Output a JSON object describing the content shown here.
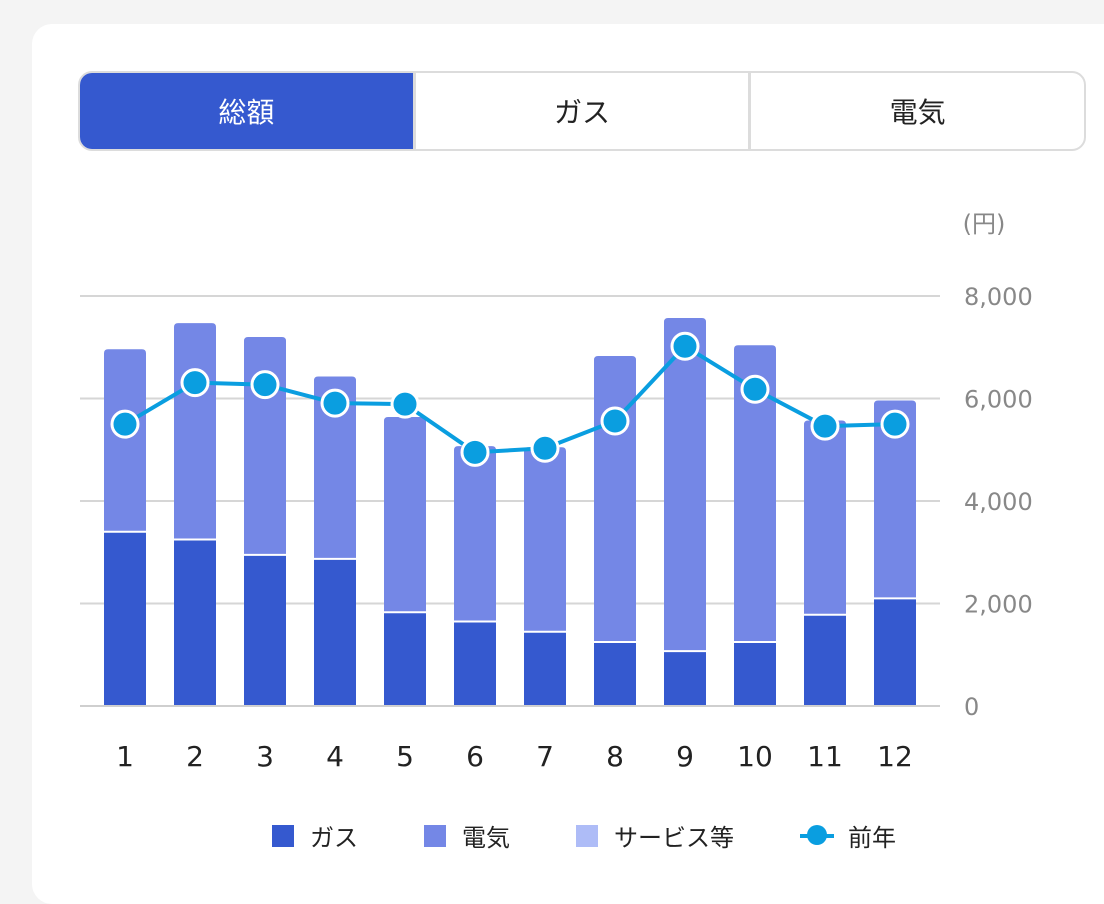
{
  "tabs": [
    {
      "label": "総額",
      "active": true
    },
    {
      "label": "ガス",
      "active": false
    },
    {
      "label": "電気",
      "active": false
    }
  ],
  "colors": {
    "accent": "#3559cf",
    "gas": "#3559cf",
    "electricity": "#7487e6",
    "service": "#aebcf7",
    "prev_year": "#0a9ee0",
    "grid": "#d6d6d6",
    "axis_text": "#888888"
  },
  "chart_data": {
    "type": "bar",
    "stacked": true,
    "unit_label": "(円)",
    "categories": [
      "1",
      "2",
      "3",
      "4",
      "5",
      "6",
      "7",
      "8",
      "9",
      "10",
      "11",
      "12"
    ],
    "ylim": [
      0,
      8000
    ],
    "yticks": [
      "0",
      "2,000",
      "4,000",
      "6,000",
      "8,000"
    ],
    "ytick_values": [
      0,
      2000,
      4000,
      6000,
      8000
    ],
    "series": [
      {
        "name": "ガス",
        "key": "gas",
        "kind": "bar",
        "values": [
          3400,
          3250,
          2950,
          2870,
          1830,
          1650,
          1450,
          1250,
          1070,
          1250,
          1780,
          2100
        ]
      },
      {
        "name": "電気",
        "key": "electricity",
        "kind": "bar",
        "values": [
          3560,
          4220,
          4250,
          3560,
          3810,
          3420,
          3600,
          5580,
          6500,
          5790,
          3790,
          3860
        ]
      },
      {
        "name": "サービス等",
        "key": "service",
        "kind": "bar",
        "values": [
          0,
          0,
          0,
          0,
          0,
          0,
          0,
          0,
          0,
          0,
          0,
          0
        ]
      },
      {
        "name": "前年",
        "key": "prev_year",
        "kind": "line",
        "values": [
          5500,
          6310,
          6270,
          5910,
          5890,
          4950,
          5030,
          5560,
          7020,
          6180,
          5460,
          5500
        ]
      }
    ],
    "grid": true,
    "legend_position": "bottom"
  }
}
